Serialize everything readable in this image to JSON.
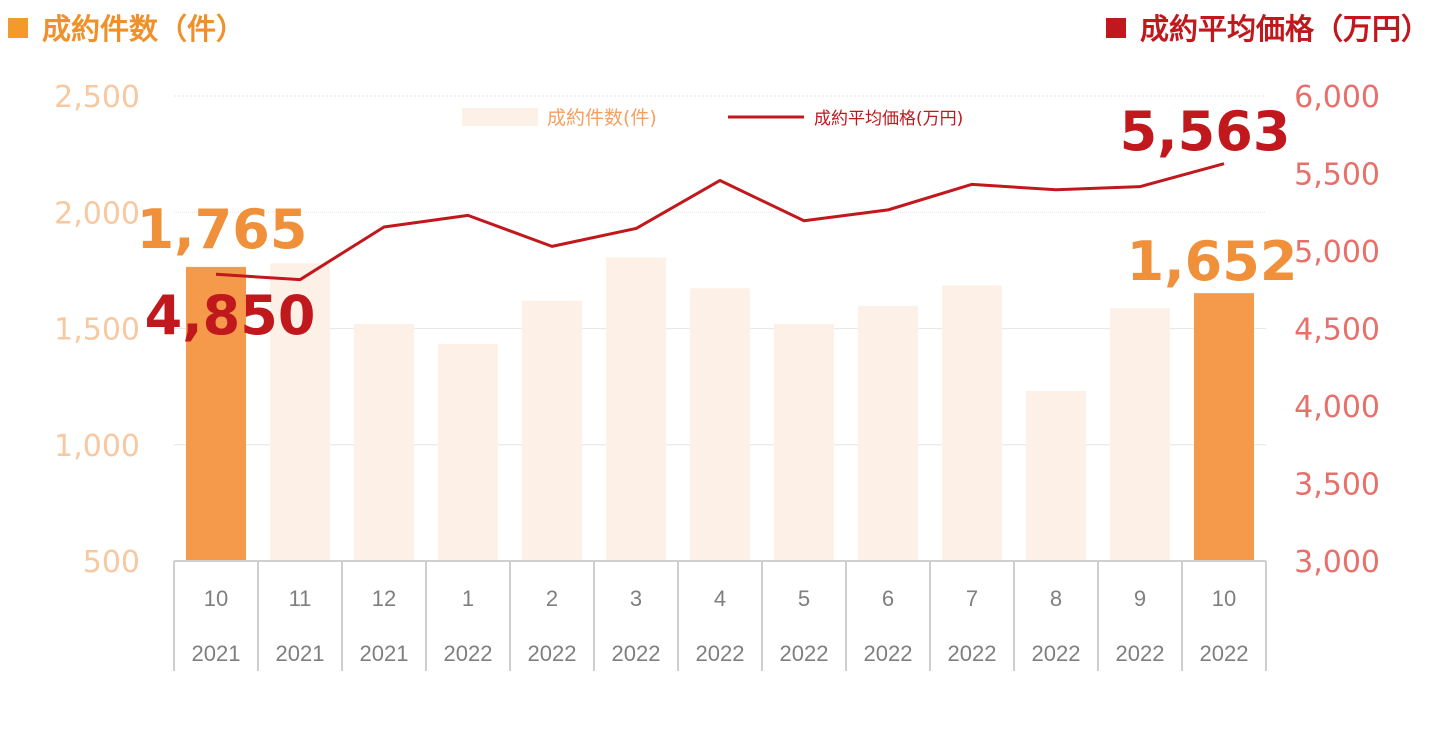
{
  "header": {
    "left_title": "成約件数（件）",
    "right_title": "成約平均価格（万円）",
    "left_color": "#f39a2a",
    "right_color": "#c0181d"
  },
  "chart_data": {
    "type": "bar",
    "categories": [
      [
        "10",
        "2021"
      ],
      [
        "11",
        "2021"
      ],
      [
        "12",
        "2021"
      ],
      [
        "1",
        "2022"
      ],
      [
        "2",
        "2022"
      ],
      [
        "3",
        "2022"
      ],
      [
        "4",
        "2022"
      ],
      [
        "5",
        "2022"
      ],
      [
        "6",
        "2022"
      ],
      [
        "7",
        "2022"
      ],
      [
        "8",
        "2022"
      ],
      [
        "9",
        "2022"
      ],
      [
        "10",
        "2022"
      ]
    ],
    "series": [
      {
        "name": "成約件数(件)",
        "type": "bar",
        "axis": "left",
        "values": [
          1765,
          1780,
          1519,
          1434,
          1620,
          1806,
          1673,
          1519,
          1597,
          1685,
          1231,
          1587,
          1652
        ],
        "highlight_indices": [
          0,
          12
        ],
        "color": "#fdf0e6",
        "highlight_color": "#f5994a"
      },
      {
        "name": "成約平均価格(万円)",
        "type": "line",
        "axis": "right",
        "values": [
          4850,
          4815,
          5155,
          5230,
          5030,
          5145,
          5455,
          5195,
          5265,
          5430,
          5395,
          5415,
          5563
        ],
        "color": "#c0181d"
      }
    ],
    "left_axis": {
      "ylim": [
        500,
        2500
      ],
      "ticks": [
        "500",
        "1,000",
        "1,500",
        "2,000",
        "2,500"
      ],
      "tick_values": [
        500,
        1000,
        1500,
        2000,
        2500
      ],
      "color": "#f8c8a0"
    },
    "right_axis": {
      "ylim": [
        3000,
        6000
      ],
      "ticks": [
        "3,000",
        "3,500",
        "4,000",
        "4,500",
        "5,000",
        "5,500",
        "6,000"
      ],
      "tick_values": [
        3000,
        3500,
        4000,
        4500,
        5000,
        5500,
        6000
      ],
      "color": "#e8706a"
    },
    "annotations": [
      {
        "text": "1,765",
        "series": 0,
        "index": 0,
        "color": "#f0903a"
      },
      {
        "text": "1,652",
        "series": 0,
        "index": 12,
        "color": "#f0903a"
      },
      {
        "text": "4,850",
        "series": 1,
        "index": 0,
        "color": "#c0181d"
      },
      {
        "text": "5,563",
        "series": 1,
        "index": 12,
        "color": "#c0181d"
      }
    ],
    "legend": {
      "placement": "top-center",
      "entries": [
        "成約件数(件)",
        "成約平均価格(万円)"
      ]
    },
    "grid": true
  }
}
